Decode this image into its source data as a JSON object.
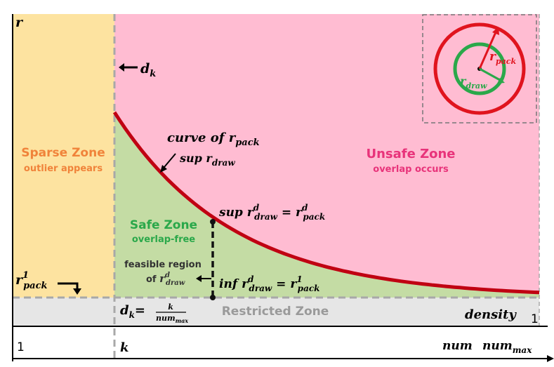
{
  "axes": {
    "y_label": "r",
    "x_label": "density",
    "x_label_end": "1",
    "bottom_left": "1",
    "bottom_k": "k",
    "bottom_num": "num",
    "bottom_num_max_base": "num",
    "bottom_num_max_sub": "max"
  },
  "zones": {
    "sparse": {
      "title": "Sparse Zone",
      "subtitle": "outlier appears",
      "color": "#f0833a"
    },
    "safe": {
      "title": "Safe Zone",
      "subtitle": "overlap-free",
      "color": "#2aa84a"
    },
    "unsafe": {
      "title": "Unsafe Zone",
      "subtitle": "overlap occurs",
      "color": "#e8337a"
    },
    "restricted": {
      "title": "Restricted Zone",
      "color": "#9a9a9a"
    }
  },
  "labels": {
    "dk": {
      "base": "d",
      "sub": "k"
    },
    "dk_formula": {
      "lhs_base": "d",
      "lhs_sub": "k",
      "eq": "=",
      "num": "k",
      "den_base": "num",
      "den_sub": "max"
    },
    "r_pack_1": {
      "base": "r",
      "sup": "1",
      "sub": "pack"
    },
    "curve_line1": {
      "text": "curve of ",
      "base": "r",
      "sub": "pack"
    },
    "curve_line2": {
      "text": "sup ",
      "base": "r",
      "sub": "draw"
    },
    "sup_eq": {
      "op": "sup ",
      "base": "r",
      "sup": "d",
      "sub": "draw",
      "eq": " = ",
      "rbase": "r",
      "rsup": "d",
      "rsub": "pack"
    },
    "inf_eq": {
      "op": "inf ",
      "base": "r",
      "sup": "d",
      "sub": "draw",
      "eq": " = ",
      "rbase": "r",
      "rsup": "1",
      "rsub": "pack"
    },
    "feasible_line1": "feasible region",
    "feasible_line2": {
      "text": "of ",
      "base": "r",
      "sup": "d",
      "sub": "draw"
    }
  },
  "inset": {
    "r_pack": {
      "base": "r",
      "sub": "pack",
      "color": "#e0141e"
    },
    "r_draw": {
      "base": "r",
      "sub": "draw",
      "color": "#2aa84a"
    }
  },
  "colors": {
    "sparse_bg": "#fde3a0",
    "safe_bg": "#c4dca4",
    "unsafe_bg": "#ffbcd2",
    "restricted_bg": "#e6e6e6",
    "curve": "#c00012",
    "dashed": "#a8a8a8"
  }
}
